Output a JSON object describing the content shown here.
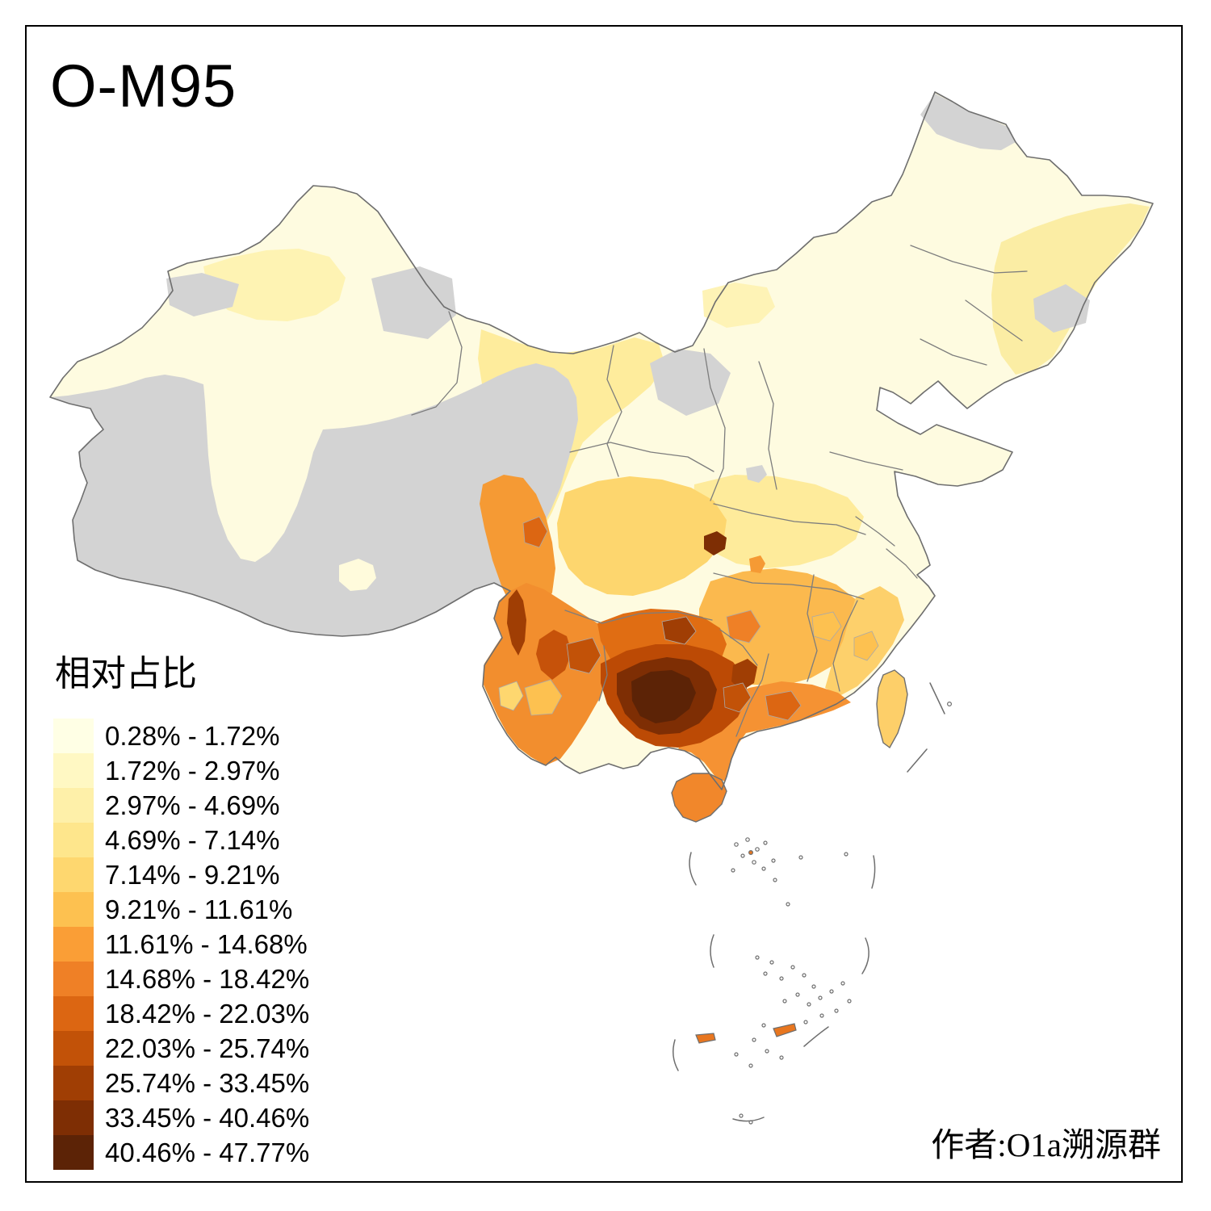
{
  "title": "O-M95",
  "legend": {
    "title": "相对占比",
    "classes": [
      {
        "label": "0.28% - 1.72%",
        "color": "#FFFFE5"
      },
      {
        "label": "1.72% - 2.97%",
        "color": "#FFF8C3"
      },
      {
        "label": "2.97% - 4.69%",
        "color": "#FEF0A9"
      },
      {
        "label": "4.69% - 7.14%",
        "color": "#FEE68C"
      },
      {
        "label": "7.14% - 9.21%",
        "color": "#FED76F"
      },
      {
        "label": "9.21% - 11.61%",
        "color": "#FDC150"
      },
      {
        "label": "11.61% - 14.68%",
        "color": "#FA9E36"
      },
      {
        "label": "14.68% - 18.42%",
        "color": "#EF8026"
      },
      {
        "label": "18.42% - 22.03%",
        "color": "#DC6612"
      },
      {
        "label": "22.03% - 25.74%",
        "color": "#C25208"
      },
      {
        "label": "25.74% - 33.45%",
        "color": "#A03E04"
      },
      {
        "label": "33.45% - 40.46%",
        "color": "#7E2E04"
      },
      {
        "label": "40.46% - 47.77%",
        "color": "#5C2306"
      }
    ]
  },
  "credit": "作者:O1a溯源群",
  "map": {
    "no_data_color": "#D3D3D3",
    "border_color": "#6E6E6E",
    "province_border_color": "#7D7D7D",
    "sea_color": "#FFFFFF",
    "regions": {
      "base": {
        "name": "china-base",
        "color": "#FEFBE0"
      },
      "xinjiang_north": {
        "name": "xinjiang-north-band",
        "color": "#FEF3B3"
      },
      "hetao_tint": {
        "name": "hetao-tint",
        "color": "#FEF3B6"
      },
      "northeast_east": {
        "name": "northeast-east-band",
        "color": "#FBEDA4"
      },
      "gansu_band": {
        "name": "gansu-ningxia-band",
        "color": "#FEEC9C"
      },
      "sichuan_basin": {
        "name": "sichuan-basin",
        "color": "#FDD66E"
      },
      "hubei_band": {
        "name": "hubei-henan-band",
        "color": "#FEEB9B"
      },
      "hunan_jiangxi": {
        "name": "hunan-jiangxi",
        "color": "#FBB94E"
      },
      "fujian": {
        "name": "fujian-coast",
        "color": "#FDD06B"
      },
      "west_sichuan": {
        "name": "west-sichuan-strip",
        "color": "#F59A34"
      },
      "yunnan": {
        "name": "yunnan",
        "color": "#F28E2E"
      },
      "guangdong": {
        "name": "guangdong",
        "color": "#F59233"
      },
      "guizhou": {
        "name": "guizhou",
        "color": "#E06D13"
      },
      "guangxi_ring": {
        "name": "guangxi-ring",
        "color": "#BC4A05"
      },
      "guangxi_core": {
        "name": "guangxi-core",
        "color": "#7E2E04"
      },
      "guangxi_darkest": {
        "name": "guangxi-darkest",
        "color": "#5C2306"
      },
      "nujiang_spot": {
        "name": "nujiang-spot",
        "color": "#A03E04"
      },
      "liangshan_spot": {
        "name": "liangshan-spot",
        "color": "#C6520A"
      },
      "hubei_spot": {
        "name": "hubei-dark-spot",
        "color": "#7E2E04"
      },
      "chongqing_spot": {
        "name": "chongqing-orange-spot",
        "color": "#F59A34"
      },
      "hunan_spot": {
        "name": "hunan-dark-spot",
        "color": "#A03E04"
      },
      "hainan": {
        "name": "hainan-island",
        "color": "#F1872B"
      },
      "taiwan": {
        "name": "taiwan-island",
        "color": "#FDCF69"
      },
      "lhasa_spot": {
        "name": "lhasa-pale-spot",
        "color": "#FFFBDC"
      },
      "island_orange": {
        "name": "south-sea-islet",
        "color": "#E8761F"
      }
    }
  }
}
